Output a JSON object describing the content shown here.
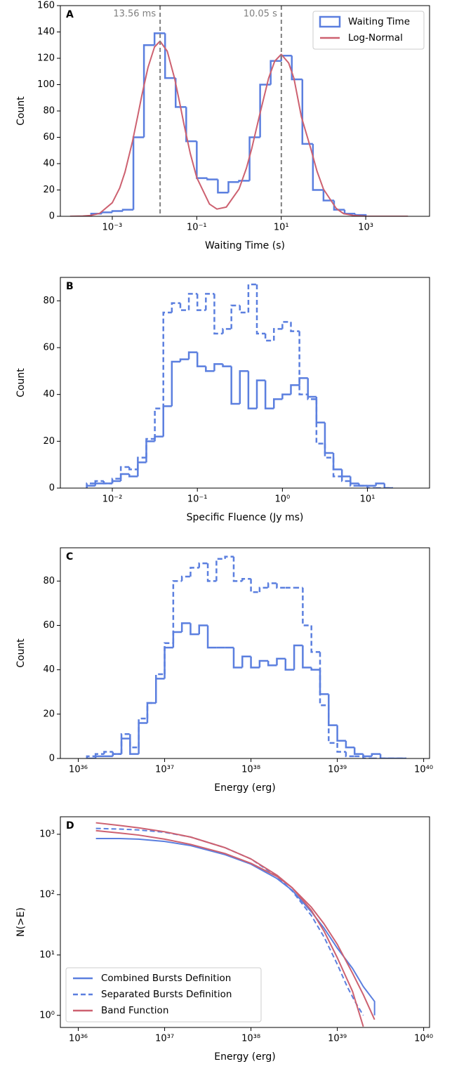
{
  "chart_data": [
    {
      "type": "histogram",
      "panel_label": "A",
      "xlabel": "Waiting Time (s)",
      "ylabel": "Count",
      "xscale": "log",
      "yscale": "linear",
      "xlim": [
        5.9e-05,
        32400
      ],
      "ylim": [
        0,
        160
      ],
      "xticks": [
        {
          "value": 0.001,
          "label": "10⁻³"
        },
        {
          "value": 0.1,
          "label": "10⁻¹"
        },
        {
          "value": 10,
          "label": "10¹"
        },
        {
          "value": 1000,
          "label": "10³"
        }
      ],
      "yticks": [
        0,
        20,
        40,
        60,
        80,
        100,
        120,
        140,
        160
      ],
      "legend": "upper right",
      "vlines": [
        {
          "x": 0.01356,
          "label": "13.56 ms",
          "color": "#808080"
        },
        {
          "x": 10.05,
          "label": "10.05 s",
          "color": "#808080"
        }
      ],
      "series": [
        {
          "name": "Waiting Time",
          "type": "step",
          "color": "#5b7fdf",
          "linestyle": "solid",
          "bins": [
            0.0003162,
            0.0005623,
            0.001,
            0.001778,
            0.003162,
            0.005623,
            0.01,
            0.01778,
            0.03162,
            0.05623,
            0.1,
            0.1778,
            0.3162,
            0.5623,
            1,
            1.778,
            3.162,
            5.623,
            10,
            17.78,
            31.62,
            56.23,
            100,
            177.8,
            316.2,
            562.3,
            1000
          ],
          "values": [
            2,
            3,
            4,
            5,
            60,
            130,
            139,
            105,
            83,
            57,
            29,
            28,
            18,
            26,
            27,
            60,
            100,
            118,
            122,
            104,
            55,
            20,
            12,
            5,
            2,
            1
          ]
        },
        {
          "name": "Log-Normal",
          "type": "line",
          "color": "#cd6170",
          "linestyle": "solid",
          "x": [
            0.0001,
            0.0002,
            0.0003,
            0.0005,
            0.001,
            0.0015,
            0.002,
            0.003,
            0.004,
            0.005,
            0.007,
            0.01,
            0.0135,
            0.02,
            0.03,
            0.04,
            0.05,
            0.07,
            0.1,
            0.2,
            0.3,
            0.5,
            1,
            1.5,
            2,
            3,
            5,
            7,
            10,
            15,
            20,
            30,
            50,
            70,
            100,
            200,
            300,
            500,
            1000,
            2000,
            5000,
            10000
          ],
          "values": [
            0,
            0.2,
            0.6,
            2.2,
            10.3,
            21.5,
            33.6,
            56.7,
            76.1,
            91.7,
            113,
            128.6,
            133,
            125.4,
            104.5,
            85.2,
            69.6,
            47.9,
            29.4,
            9.3,
            5.5,
            7.0,
            20.7,
            36.6,
            51.4,
            75.5,
            104.7,
            117.8,
            123,
            116.4,
            104.7,
            75.5,
            51.4,
            34.4,
            20.6,
            6.0,
            2.0,
            0.7,
            0.1,
            0,
            0,
            0
          ]
        }
      ]
    },
    {
      "type": "histogram",
      "panel_label": "B",
      "xlabel": "Specific Fluence (Jy ms)",
      "ylabel": "Count",
      "xscale": "log",
      "yscale": "linear",
      "xlim": [
        0.00245,
        53.7
      ],
      "ylim": [
        0,
        90
      ],
      "xticks": [
        {
          "value": 0.01,
          "label": "10⁻²"
        },
        {
          "value": 0.1,
          "label": "10⁻¹"
        },
        {
          "value": 1,
          "label": "10⁰"
        },
        {
          "value": 10,
          "label": "10¹"
        }
      ],
      "yticks": [
        0,
        20,
        40,
        60,
        80
      ],
      "series": [
        {
          "type": "step",
          "color": "#5b7fdf",
          "linestyle": "solid",
          "bins": [
            0.005012,
            0.00631,
            0.007943,
            0.01,
            0.01259,
            0.01585,
            0.01995,
            0.02512,
            0.03162,
            0.03981,
            0.05012,
            0.0631,
            0.07943,
            0.1,
            0.1259,
            0.1585,
            0.1995,
            0.2512,
            0.3162,
            0.3981,
            0.5012,
            0.631,
            0.7943,
            1,
            1.259,
            1.585,
            1.995,
            2.512,
            3.162,
            3.981,
            5.012,
            6.31,
            7.943,
            10,
            12.59,
            15.85,
            19.95
          ],
          "values": [
            1,
            2,
            2,
            3,
            6,
            5,
            11,
            20,
            22,
            35,
            54,
            55,
            58,
            52,
            50,
            53,
            52,
            36,
            50,
            34,
            46,
            34,
            38,
            40,
            44,
            47,
            39,
            28,
            15,
            8,
            5,
            2,
            1,
            1,
            2,
            0
          ]
        },
        {
          "type": "step",
          "color": "#5b7fdf",
          "linestyle": "dashed",
          "bins": [
            0.005012,
            0.00631,
            0.007943,
            0.01,
            0.01259,
            0.01585,
            0.01995,
            0.02512,
            0.03162,
            0.03981,
            0.05012,
            0.0631,
            0.07943,
            0.1,
            0.1259,
            0.1585,
            0.1995,
            0.2512,
            0.3162,
            0.3981,
            0.5012,
            0.631,
            0.7943,
            1,
            1.259,
            1.585,
            1.995,
            2.512,
            3.162,
            3.981,
            5.012,
            6.31,
            7.943,
            10,
            12.59,
            15.85,
            19.95
          ],
          "values": [
            2,
            3,
            2,
            4,
            9,
            8,
            13,
            21,
            34,
            75,
            79,
            76,
            83,
            76,
            83,
            66,
            68,
            78,
            75,
            87,
            66,
            63,
            68,
            71,
            67,
            40,
            38,
            19,
            13,
            5,
            3,
            1,
            1,
            0,
            0,
            0
          ]
        }
      ]
    },
    {
      "type": "histogram",
      "panel_label": "C",
      "xlabel": "Energy (erg)",
      "ylabel": "Count",
      "xscale": "log",
      "yscale": "linear",
      "xlim": [
        6.2e+35,
        1.17e+40
      ],
      "ylim": [
        0,
        95
      ],
      "xticks": [
        {
          "value": 1e+36,
          "label": "10³⁶"
        },
        {
          "value": 1e+37,
          "label": "10³⁷"
        },
        {
          "value": 1e+38,
          "label": "10³⁸"
        },
        {
          "value": 1e+39,
          "label": "10³⁹"
        },
        {
          "value": 1e+40,
          "label": "10⁴⁰"
        }
      ],
      "yticks": [
        0,
        20,
        40,
        60,
        80
      ],
      "series": [
        {
          "type": "step",
          "color": "#5b7fdf",
          "linestyle": "solid",
          "bins": [
            1.259e+36,
            1.585e+36,
            1.995e+36,
            2.512e+36,
            3.162e+36,
            3.981e+36,
            5.012e+36,
            6.31e+36,
            7.943e+36,
            1e+37,
            1.259e+37,
            1.585e+37,
            1.995e+37,
            2.512e+37,
            3.162e+37,
            3.981e+37,
            5.012e+37,
            6.31e+37,
            7.943e+37,
            1e+38,
            1.259e+38,
            1.585e+38,
            1.995e+38,
            2.512e+38,
            3.162e+38,
            3.981e+38,
            5.012e+38,
            6.31e+38,
            7.943e+38,
            1e+39,
            1.259e+39,
            1.585e+39,
            1.995e+39,
            2.512e+39,
            3.162e+39,
            3.981e+39,
            5.012e+39,
            6.31e+39
          ],
          "values": [
            0,
            1,
            1,
            2,
            9,
            2,
            16,
            25,
            36,
            50,
            57,
            61,
            56,
            60,
            50,
            50,
            50,
            41,
            46,
            41,
            44,
            42,
            45,
            40,
            51,
            41,
            40,
            29,
            15,
            8,
            5,
            2,
            1,
            2,
            0,
            0,
            0
          ]
        },
        {
          "type": "step",
          "color": "#5b7fdf",
          "linestyle": "dashed",
          "bins": [
            1.259e+36,
            1.585e+36,
            1.995e+36,
            2.512e+36,
            3.162e+36,
            3.981e+36,
            5.012e+36,
            6.31e+36,
            7.943e+36,
            1e+37,
            1.259e+37,
            1.585e+37,
            1.995e+37,
            2.512e+37,
            3.162e+37,
            3.981e+37,
            5.012e+37,
            6.31e+37,
            7.943e+37,
            1e+38,
            1.259e+38,
            1.585e+38,
            1.995e+38,
            2.512e+38,
            3.162e+38,
            3.981e+38,
            5.012e+38,
            6.31e+38,
            7.943e+38,
            1e+39,
            1.259e+39,
            1.585e+39,
            1.995e+39,
            2.512e+39,
            3.162e+39,
            3.981e+39,
            5.012e+39,
            6.31e+39
          ],
          "values": [
            1,
            2,
            3,
            2,
            11,
            5,
            18,
            25,
            38,
            52,
            80,
            82,
            86,
            88,
            80,
            90,
            91,
            80,
            81,
            75,
            77,
            79,
            77,
            77,
            77,
            60,
            48,
            24,
            7,
            3,
            1,
            1,
            0,
            0,
            0,
            0,
            0
          ]
        }
      ]
    },
    {
      "type": "line",
      "panel_label": "D",
      "xlabel": "Energy (erg)",
      "ylabel": "N(>E)",
      "xscale": "log",
      "yscale": "log",
      "xlim": [
        6.2e+35,
        1.17e+40
      ],
      "ylim": [
        0.63,
        1950
      ],
      "xticks": [
        {
          "value": 1e+36,
          "label": "10³⁶"
        },
        {
          "value": 1e+37,
          "label": "10³⁷"
        },
        {
          "value": 1e+38,
          "label": "10³⁸"
        },
        {
          "value": 1e+39,
          "label": "10³⁹"
        },
        {
          "value": 1e+40,
          "label": "10⁴⁰"
        }
      ],
      "yticks": [
        {
          "value": 1,
          "label": "10⁰"
        },
        {
          "value": 10,
          "label": "10¹"
        },
        {
          "value": 100,
          "label": "10²"
        },
        {
          "value": 1000,
          "label": "10³"
        }
      ],
      "legend": "lower left",
      "series": [
        {
          "name": "Combined Bursts Definition",
          "type": "line",
          "color": "#5b7fdf",
          "linestyle": "solid",
          "x": [
            1.6e+36,
            3e+36,
            5e+36,
            1e+37,
            2e+37,
            5e+37,
            1e+38,
            2e+38,
            3e+38,
            5e+38,
            7e+38,
            1e+39,
            1.5e+39,
            2e+39,
            2.7e+39,
            2.7e+39
          ],
          "values": [
            850,
            850,
            830,
            760,
            650,
            460,
            320,
            185,
            118,
            52,
            28,
            13,
            6,
            3,
            1.7,
            1
          ]
        },
        {
          "name": "Separated Bursts Definition",
          "type": "line",
          "color": "#5b7fdf",
          "linestyle": "dashed",
          "x": [
            1.6e+36,
            3e+36,
            5e+36,
            1e+37,
            2e+37,
            5e+37,
            1e+38,
            2e+38,
            3e+38,
            5e+38,
            7e+38,
            1e+39,
            1.3e+39,
            1.6e+39,
            2e+39
          ],
          "values": [
            1250,
            1220,
            1180,
            1080,
            900,
            600,
            390,
            200,
            115,
            45,
            20,
            7,
            3,
            1.7,
            1
          ]
        },
        {
          "name": "Band Function",
          "type": "line",
          "color": "#cd6170",
          "linestyle": "solid",
          "x": [
            1.6e+36,
            3e+36,
            5e+36,
            1e+37,
            2e+37,
            5e+37,
            1e+38,
            2e+38,
            3e+38,
            5e+38,
            7e+38,
            1e+39,
            1.5e+39,
            2e+39
          ],
          "values": [
            1550,
            1400,
            1280,
            1100,
            900,
            600,
            390,
            210,
            130,
            55,
            25,
            9,
            2.5,
            0.65
          ]
        },
        {
          "type": "line",
          "color": "#cd6170",
          "linestyle": "solid",
          "x": [
            1.6e+36,
            3e+36,
            5e+36,
            1e+37,
            2e+37,
            5e+37,
            1e+38,
            2e+38,
            3e+38,
            5e+38,
            7e+38,
            1e+39,
            1.5e+39,
            2e+39,
            2.7e+39
          ],
          "values": [
            1150,
            1050,
            970,
            830,
            680,
            480,
            330,
            200,
            130,
            62,
            33,
            15,
            5,
            2.2,
            0.85
          ]
        }
      ]
    }
  ]
}
